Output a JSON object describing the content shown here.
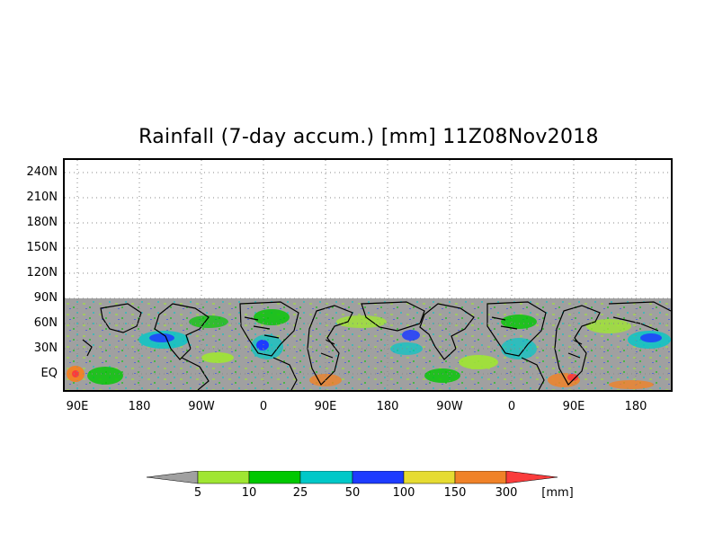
{
  "title": "Rainfall (7-day accum.) [mm] 11Z08Nov2018",
  "lat_labels": [
    "240N",
    "210N",
    "180N",
    "150N",
    "120N",
    "90N",
    "60N",
    "30N",
    "EQ"
  ],
  "lon_labels": [
    "90E",
    "180",
    "90W",
    "0",
    "90E",
    "180",
    "90W",
    "0",
    "90E",
    "180"
  ],
  "colorbar": {
    "unit": "[mm]",
    "thresholds": [
      "5",
      "10",
      "25",
      "50",
      "100",
      "150",
      "300"
    ],
    "colors": [
      "#a0a0a0",
      "#a0e632",
      "#00c800",
      "#00c8c8",
      "#1e3cff",
      "#e6dc32",
      "#f08228",
      "#fa3c3c"
    ]
  },
  "map": {
    "no_data_color": "#a0a0a0",
    "background_color": "#ffffff",
    "grid": "dotted"
  }
}
